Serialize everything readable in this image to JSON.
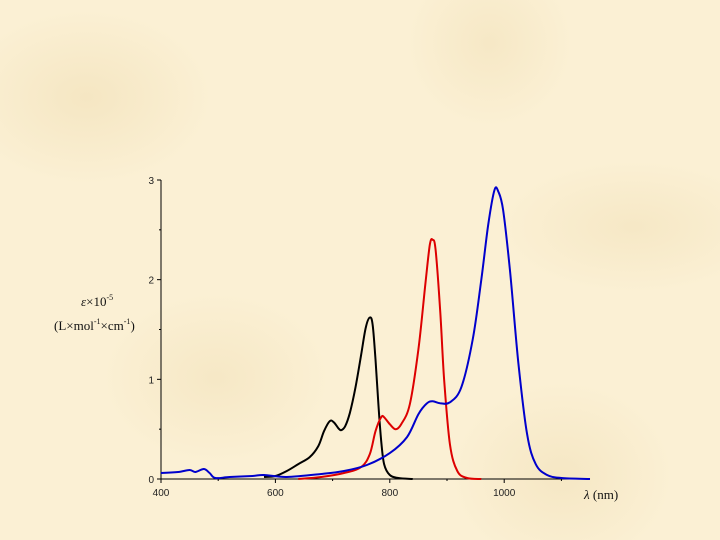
{
  "chart_data": {
    "type": "line",
    "title": "",
    "xlabel": {
      "symbol": "λ",
      "unit": " (nm)"
    },
    "ylabel": {
      "line1": {
        "symbol": "ε",
        "times": "×10",
        "exp": "-5"
      },
      "line2": {
        "open": "(L",
        "t1": "×",
        "mol": "mol",
        "exp1": "-1",
        "t2": "×",
        "cm": "cm",
        "exp2": "-1",
        "close": ")"
      }
    },
    "xlim": [
      400,
      1150
    ],
    "ylim": [
      0,
      3
    ],
    "x_ticks": [
      400,
      600,
      800,
      1000
    ],
    "y_ticks": [
      0,
      1,
      2,
      3
    ],
    "grid": false,
    "series": [
      {
        "color": "#000000",
        "points": [
          [
            580,
            0.02
          ],
          [
            600,
            0.03
          ],
          [
            620,
            0.08
          ],
          [
            640,
            0.15
          ],
          [
            660,
            0.22
          ],
          [
            675,
            0.33
          ],
          [
            685,
            0.48
          ],
          [
            695,
            0.58
          ],
          [
            702,
            0.57
          ],
          [
            710,
            0.51
          ],
          [
            715,
            0.49
          ],
          [
            722,
            0.53
          ],
          [
            730,
            0.66
          ],
          [
            740,
            0.92
          ],
          [
            750,
            1.25
          ],
          [
            758,
            1.52
          ],
          [
            765,
            1.62
          ],
          [
            770,
            1.55
          ],
          [
            775,
            1.2
          ],
          [
            780,
            0.75
          ],
          [
            785,
            0.38
          ],
          [
            790,
            0.15
          ],
          [
            800,
            0.04
          ],
          [
            815,
            0.01
          ],
          [
            840,
            0
          ]
        ]
      },
      {
        "color": "#dd0000",
        "points": [
          [
            640,
            0
          ],
          [
            680,
            0.02
          ],
          [
            720,
            0.06
          ],
          [
            750,
            0.12
          ],
          [
            765,
            0.25
          ],
          [
            775,
            0.48
          ],
          [
            785,
            0.62
          ],
          [
            790,
            0.62
          ],
          [
            800,
            0.55
          ],
          [
            810,
            0.5
          ],
          [
            820,
            0.55
          ],
          [
            835,
            0.75
          ],
          [
            850,
            1.3
          ],
          [
            862,
            1.95
          ],
          [
            870,
            2.35
          ],
          [
            875,
            2.4
          ],
          [
            880,
            2.3
          ],
          [
            888,
            1.7
          ],
          [
            895,
            1.0
          ],
          [
            905,
            0.35
          ],
          [
            918,
            0.08
          ],
          [
            935,
            0.01
          ],
          [
            960,
            0
          ]
        ]
      },
      {
        "color": "#0000cc",
        "points": [
          [
            400,
            0.06
          ],
          [
            430,
            0.07
          ],
          [
            450,
            0.09
          ],
          [
            460,
            0.07
          ],
          [
            475,
            0.1
          ],
          [
            485,
            0.06
          ],
          [
            495,
            0.01
          ],
          [
            520,
            0.02
          ],
          [
            560,
            0.03
          ],
          [
            580,
            0.04
          ],
          [
            620,
            0.02
          ],
          [
            680,
            0.05
          ],
          [
            720,
            0.08
          ],
          [
            760,
            0.14
          ],
          [
            800,
            0.26
          ],
          [
            830,
            0.42
          ],
          [
            850,
            0.65
          ],
          [
            865,
            0.76
          ],
          [
            875,
            0.78
          ],
          [
            888,
            0.76
          ],
          [
            905,
            0.77
          ],
          [
            925,
            0.92
          ],
          [
            945,
            1.4
          ],
          [
            960,
            2.0
          ],
          [
            972,
            2.55
          ],
          [
            983,
            2.9
          ],
          [
            990,
            2.88
          ],
          [
            998,
            2.7
          ],
          [
            1010,
            2.1
          ],
          [
            1025,
            1.15
          ],
          [
            1040,
            0.45
          ],
          [
            1055,
            0.15
          ],
          [
            1075,
            0.04
          ],
          [
            1100,
            0.01
          ],
          [
            1150,
            0
          ]
        ]
      }
    ]
  }
}
